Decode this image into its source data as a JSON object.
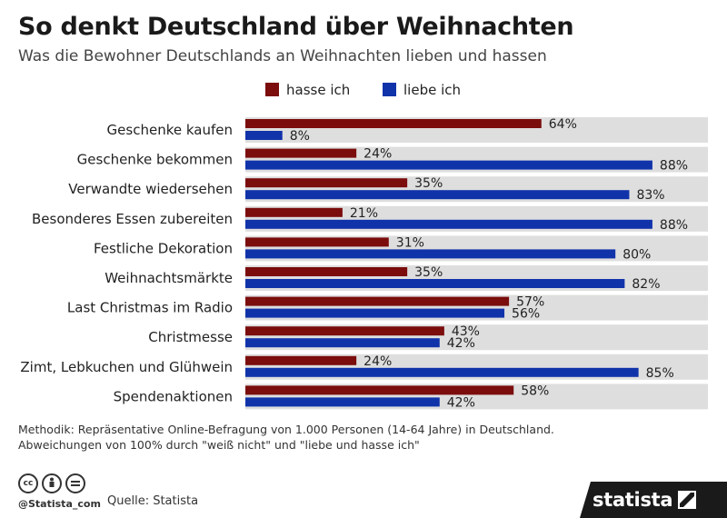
{
  "header": {
    "title": "So denkt Deutschland über Weihnachten",
    "subtitle": "Was die Bewohner Deutschlands an Weihnachten lieben und hassen"
  },
  "chart_data": {
    "type": "bar",
    "orientation": "horizontal",
    "categories": [
      "Geschenke kaufen",
      "Geschenke bekommen",
      "Verwandte wiedersehen",
      "Besonderes Essen zubereiten",
      "Festliche Dekoration",
      "Weihnachtsmärkte",
      "Last Christmas im Radio",
      "Christmesse",
      "Zimt, Lebkuchen und Glühwein",
      "Spendenaktionen"
    ],
    "series": [
      {
        "name": "hasse ich",
        "color": "#7b0d0d",
        "values": [
          64,
          24,
          35,
          21,
          31,
          35,
          57,
          43,
          24,
          58
        ]
      },
      {
        "name": "liebe ich",
        "color": "#1133aa",
        "values": [
          8,
          88,
          83,
          88,
          80,
          82,
          56,
          42,
          85,
          42
        ]
      }
    ],
    "value_suffix": "%",
    "xlim": [
      0,
      100
    ],
    "track_color": "#dedede",
    "legend_position": "top"
  },
  "footer": {
    "methodik_line1": "Methodik: Repräsentative Online-Befragung von 1.000 Personen (14-64 Jahre) in Deutschland.",
    "methodik_line2": "Abweichungen von 100% durch \"weiß nicht\" und \"liebe und hasse ich\"",
    "handle": "@Statista_com",
    "source": "Quelle: Statista",
    "brand": "statista",
    "cc_icons": [
      "cc-icon",
      "by-icon",
      "nd-icon"
    ]
  }
}
